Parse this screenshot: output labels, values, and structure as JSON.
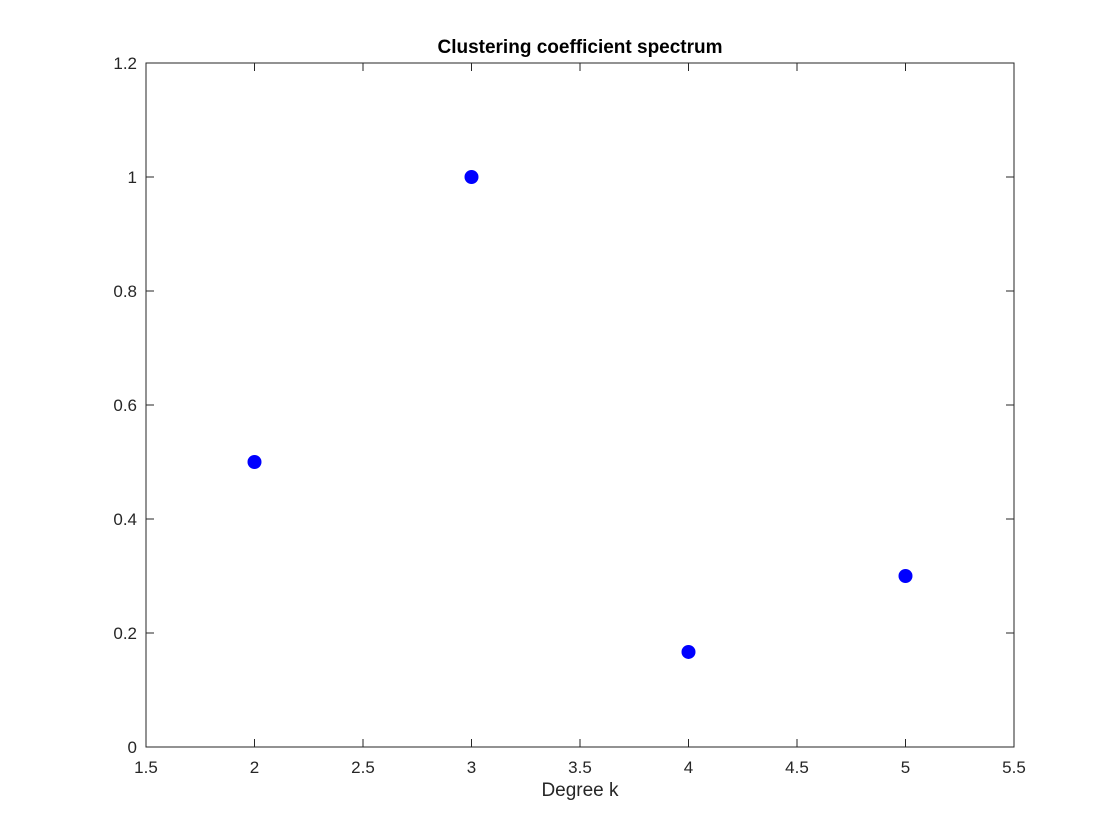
{
  "chart_data": {
    "type": "scatter",
    "title": "Clustering coefficient spectrum",
    "xlabel": "Degree k",
    "ylabel": "",
    "xlim": [
      1.5,
      5.5
    ],
    "ylim": [
      0,
      1.2
    ],
    "xticks": [
      1.5,
      2,
      2.5,
      3,
      3.5,
      4,
      4.5,
      5,
      5.5
    ],
    "xtick_labels": [
      "1.5",
      "2",
      "2.5",
      "3",
      "3.5",
      "4",
      "4.5",
      "5",
      "5.5"
    ],
    "yticks": [
      0,
      0.2,
      0.4,
      0.6,
      0.8,
      1,
      1.2
    ],
    "ytick_labels": [
      "0",
      "0.2",
      "0.4",
      "0.6",
      "0.8",
      "1",
      "1.2"
    ],
    "grid": false,
    "legend": "none",
    "series": [
      {
        "x": [
          2,
          3,
          4,
          5
        ],
        "y": [
          0.5,
          1.0,
          0.1667,
          0.3
        ],
        "marker": "filled-circle",
        "color": "#0000ff"
      }
    ]
  }
}
